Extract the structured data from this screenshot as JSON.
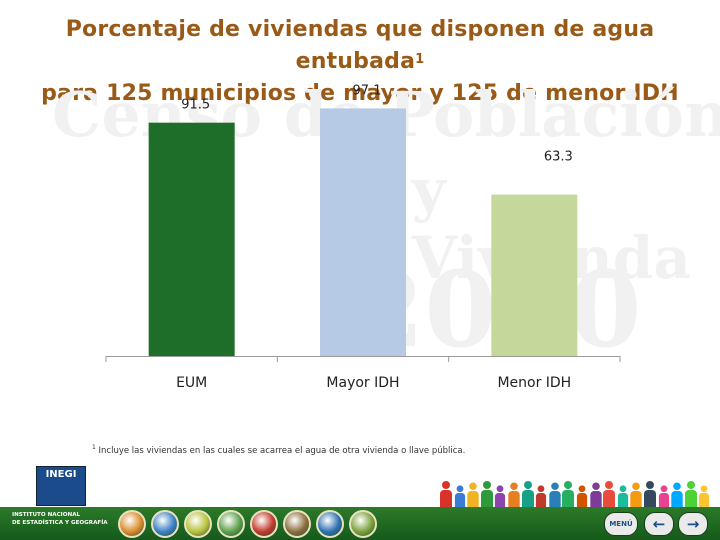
{
  "title": {
    "line1": "Porcentaje de viviendas que disponen de agua entubada",
    "line1_sup": "1",
    "line2": "para 125 municipios de mayor y 125 de menor IDH"
  },
  "watermark": {
    "line1": "Censo de Población",
    "line2": "y Vivienda",
    "line3": "2010"
  },
  "chart_data": {
    "type": "bar",
    "categories": [
      "EUM",
      "Mayor IDH",
      "Menor IDH"
    ],
    "values": [
      91.5,
      97.1,
      63.3
    ],
    "value_labels": [
      "91.5",
      "97.1",
      "63.3"
    ],
    "colors": [
      "#1e6e2a",
      "#b6cae5",
      "#c4d89c"
    ],
    "ylim": [
      0,
      100
    ],
    "title": "Porcentaje de viviendas que disponen de agua entubada para 125 municipios de mayor y 125 de menor IDH",
    "xlabel": "",
    "ylabel": "",
    "grid": false
  },
  "footnote": {
    "marker": "1",
    "text": "Incluye las viviendas en las cuales se acarrea el agua de otra vivienda o llave pública."
  },
  "logo": {
    "acronym": "INEGI",
    "line1": "INSTITUTO NACIONAL",
    "line2": "DE ESTADÍSTICA Y GEOGRAFÍA"
  },
  "footer": {
    "accent": "#1b6b22",
    "nav_menu": "MENÚ",
    "nav_prev_icon": "arrow-left-icon",
    "nav_next_icon": "arrow-right-icon",
    "people_colors": [
      "#d7332b",
      "#3a7bd5",
      "#f0b420",
      "#2e9a3a",
      "#8e44ad",
      "#e67e22",
      "#16a085",
      "#c0392b",
      "#2980b9",
      "#27ae60",
      "#d35400",
      "#7d3c98",
      "#e74c3c",
      "#1abc9c",
      "#f39c12",
      "#34495e",
      "#e84393",
      "#00a8ff",
      "#4cd137",
      "#fbc531"
    ],
    "circle_icons": [
      "education-icon",
      "health-icon",
      "people-icon",
      "family-icon",
      "housing-icon",
      "economy-icon",
      "map-icon",
      "document-icon"
    ],
    "circle_colors": [
      "#d98a2a",
      "#3a7fc4",
      "#b7c23a",
      "#5aa04a",
      "#c0392b",
      "#8a6d3b",
      "#2b6fb0",
      "#7aa03a"
    ]
  }
}
